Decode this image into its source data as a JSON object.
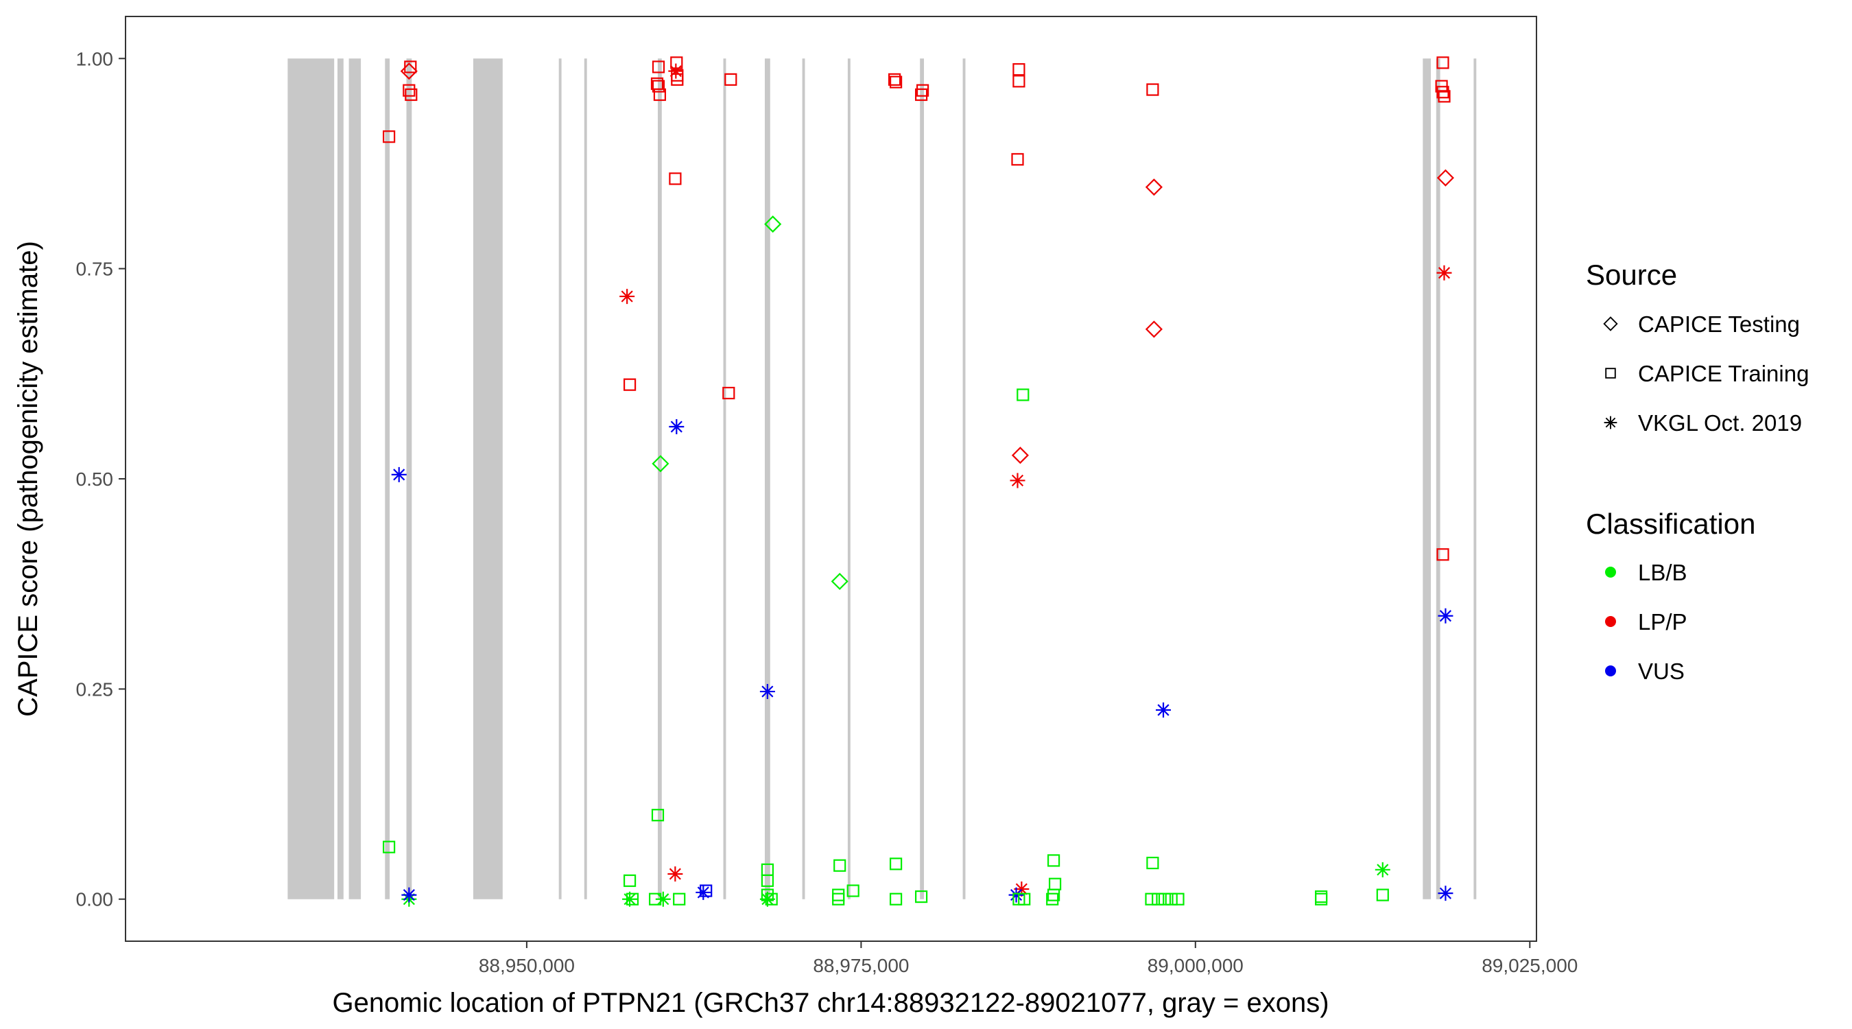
{
  "chart_data": {
    "type": "scatter",
    "title": "",
    "xlabel": "Genomic location of PTPN21 (GRCh37 chr14:88932122-89021077, gray = exons)",
    "ylabel": "CAPICE score (pathogenicity estimate)",
    "xlim": [
      88920000,
      89025500
    ],
    "ylim": [
      -0.05,
      1.05
    ],
    "x_ticks": [
      88950000,
      88975000,
      89000000,
      89025000
    ],
    "x_tick_labels": [
      "88,950,000",
      "88,975,000",
      "89,000,000",
      "89,025,000"
    ],
    "y_ticks": [
      0,
      0.25,
      0.5,
      0.75,
      1.0
    ],
    "y_tick_labels": [
      "0.00",
      "0.25",
      "0.50",
      "0.75",
      "1.00"
    ],
    "grid": false,
    "legend_position": "right",
    "exon_color": "#c8c8c8",
    "exons": [
      [
        88932122,
        88935600
      ],
      [
        88935850,
        88936300
      ],
      [
        88936700,
        88937600
      ],
      [
        88939400,
        88939750
      ],
      [
        88941000,
        88941400
      ],
      [
        88946000,
        88948200
      ],
      [
        88952400,
        88952600
      ],
      [
        88954300,
        88954500
      ],
      [
        88959800,
        88960100
      ],
      [
        88964700,
        88964900
      ],
      [
        88967800,
        88968200
      ],
      [
        88970600,
        88970800
      ],
      [
        88974000,
        88974200
      ],
      [
        88979400,
        88979700
      ],
      [
        88982600,
        88982800
      ],
      [
        89017000,
        89017600
      ],
      [
        89018000,
        89018300
      ],
      [
        89020800,
        89021000
      ]
    ],
    "legend_source_title": "Source",
    "legend_class_title": "Classification",
    "sources": [
      {
        "key": "testing",
        "label": "CAPICE Testing",
        "shape": "diamond"
      },
      {
        "key": "training",
        "label": "CAPICE Training",
        "shape": "square"
      },
      {
        "key": "vkgl",
        "label": "VKGL Oct. 2019",
        "shape": "asterisk"
      }
    ],
    "classes": [
      {
        "key": "LB",
        "label": "LB/B",
        "color": "#00ee00"
      },
      {
        "key": "LP",
        "label": "LP/P",
        "color": "#ee0000"
      },
      {
        "key": "VUS",
        "label": "VUS",
        "color": "#0000ee"
      }
    ],
    "points": [
      {
        "x": 88941200,
        "y": 0.985,
        "source": "testing",
        "class": "LP"
      },
      {
        "x": 88941300,
        "y": 0.99,
        "source": "training",
        "class": "LP"
      },
      {
        "x": 88941200,
        "y": 0.962,
        "source": "training",
        "class": "LP"
      },
      {
        "x": 88941350,
        "y": 0.957,
        "source": "training",
        "class": "LP"
      },
      {
        "x": 88939700,
        "y": 0.907,
        "source": "training",
        "class": "LP"
      },
      {
        "x": 88940450,
        "y": 0.505,
        "source": "vkgl",
        "class": "VUS"
      },
      {
        "x": 88939700,
        "y": 0.062,
        "source": "training",
        "class": "LB"
      },
      {
        "x": 88941200,
        "y": 0.0,
        "source": "vkgl",
        "class": "LB"
      },
      {
        "x": 88941200,
        "y": 0.005,
        "source": "vkgl",
        "class": "VUS"
      },
      {
        "x": 88959850,
        "y": 0.99,
        "source": "training",
        "class": "LP"
      },
      {
        "x": 88959750,
        "y": 0.97,
        "source": "training",
        "class": "LP"
      },
      {
        "x": 88959850,
        "y": 0.967,
        "source": "training",
        "class": "LP"
      },
      {
        "x": 88959950,
        "y": 0.957,
        "source": "training",
        "class": "LP"
      },
      {
        "x": 88961200,
        "y": 0.995,
        "source": "training",
        "class": "LP"
      },
      {
        "x": 88961150,
        "y": 0.985,
        "source": "vkgl",
        "class": "LP"
      },
      {
        "x": 88961250,
        "y": 0.98,
        "source": "training",
        "class": "LP"
      },
      {
        "x": 88961250,
        "y": 0.975,
        "source": "training",
        "class": "LP"
      },
      {
        "x": 88961100,
        "y": 0.857,
        "source": "training",
        "class": "LP"
      },
      {
        "x": 88965250,
        "y": 0.975,
        "source": "training",
        "class": "LP"
      },
      {
        "x": 88957500,
        "y": 0.717,
        "source": "vkgl",
        "class": "LP"
      },
      {
        "x": 88957700,
        "y": 0.612,
        "source": "training",
        "class": "LP"
      },
      {
        "x": 88965100,
        "y": 0.602,
        "source": "training",
        "class": "LP"
      },
      {
        "x": 88961200,
        "y": 0.562,
        "source": "vkgl",
        "class": "VUS"
      },
      {
        "x": 88960000,
        "y": 0.518,
        "source": "testing",
        "class": "LB"
      },
      {
        "x": 88959800,
        "y": 0.1,
        "source": "training",
        "class": "LB"
      },
      {
        "x": 88961100,
        "y": 0.03,
        "source": "vkgl",
        "class": "LP"
      },
      {
        "x": 88957700,
        "y": 0.022,
        "source": "training",
        "class": "LB"
      },
      {
        "x": 88957700,
        "y": 0.0,
        "source": "vkgl",
        "class": "LB"
      },
      {
        "x": 88957900,
        "y": 0.0,
        "source": "training",
        "class": "LB"
      },
      {
        "x": 88959600,
        "y": 0.0,
        "source": "training",
        "class": "LB"
      },
      {
        "x": 88960200,
        "y": 0.0,
        "source": "vkgl",
        "class": "LB"
      },
      {
        "x": 88961400,
        "y": 0.0,
        "source": "training",
        "class": "LB"
      },
      {
        "x": 88963200,
        "y": 0.008,
        "source": "vkgl",
        "class": "VUS"
      },
      {
        "x": 88963400,
        "y": 0.01,
        "source": "training",
        "class": "VUS"
      },
      {
        "x": 88968400,
        "y": 0.803,
        "source": "testing",
        "class": "LB"
      },
      {
        "x": 88968000,
        "y": 0.247,
        "source": "vkgl",
        "class": "VUS"
      },
      {
        "x": 88968000,
        "y": 0.035,
        "source": "training",
        "class": "LB"
      },
      {
        "x": 88968000,
        "y": 0.022,
        "source": "training",
        "class": "LB"
      },
      {
        "x": 88968000,
        "y": 0.005,
        "source": "training",
        "class": "LB"
      },
      {
        "x": 88968000,
        "y": 0.0,
        "source": "vkgl",
        "class": "LB"
      },
      {
        "x": 88968300,
        "y": 0.0,
        "source": "training",
        "class": "LB"
      },
      {
        "x": 88973400,
        "y": 0.378,
        "source": "testing",
        "class": "LB"
      },
      {
        "x": 88973400,
        "y": 0.04,
        "source": "training",
        "class": "LB"
      },
      {
        "x": 88973300,
        "y": 0.005,
        "source": "training",
        "class": "LB"
      },
      {
        "x": 88973300,
        "y": 0.0,
        "source": "training",
        "class": "LB"
      },
      {
        "x": 88974400,
        "y": 0.01,
        "source": "training",
        "class": "LB"
      },
      {
        "x": 88977500,
        "y": 0.975,
        "source": "training",
        "class": "LP"
      },
      {
        "x": 88977600,
        "y": 0.972,
        "source": "training",
        "class": "LP"
      },
      {
        "x": 88979600,
        "y": 0.962,
        "source": "training",
        "class": "LP"
      },
      {
        "x": 88979500,
        "y": 0.957,
        "source": "training",
        "class": "LP"
      },
      {
        "x": 88977600,
        "y": 0.042,
        "source": "training",
        "class": "LB"
      },
      {
        "x": 88977600,
        "y": 0.0,
        "source": "training",
        "class": "LB"
      },
      {
        "x": 88979500,
        "y": 0.003,
        "source": "training",
        "class": "LB"
      },
      {
        "x": 88986800,
        "y": 0.987,
        "source": "training",
        "class": "LP"
      },
      {
        "x": 88986800,
        "y": 0.973,
        "source": "training",
        "class": "LP"
      },
      {
        "x": 88986700,
        "y": 0.88,
        "source": "training",
        "class": "LP"
      },
      {
        "x": 88986900,
        "y": 0.528,
        "source": "testing",
        "class": "LP"
      },
      {
        "x": 88986700,
        "y": 0.498,
        "source": "vkgl",
        "class": "LP"
      },
      {
        "x": 88987100,
        "y": 0.6,
        "source": "training",
        "class": "LB"
      },
      {
        "x": 88987000,
        "y": 0.012,
        "source": "vkgl",
        "class": "LP"
      },
      {
        "x": 88986600,
        "y": 0.005,
        "source": "vkgl",
        "class": "VUS"
      },
      {
        "x": 88986800,
        "y": 0.0,
        "source": "training",
        "class": "LB"
      },
      {
        "x": 88987200,
        "y": 0.0,
        "source": "training",
        "class": "LB"
      },
      {
        "x": 88989400,
        "y": 0.046,
        "source": "training",
        "class": "LB"
      },
      {
        "x": 88989500,
        "y": 0.018,
        "source": "training",
        "class": "LB"
      },
      {
        "x": 88989400,
        "y": 0.005,
        "source": "training",
        "class": "LB"
      },
      {
        "x": 88989300,
        "y": 0.0,
        "source": "training",
        "class": "LB"
      },
      {
        "x": 88996800,
        "y": 0.963,
        "source": "training",
        "class": "LP"
      },
      {
        "x": 88996900,
        "y": 0.847,
        "source": "testing",
        "class": "LP"
      },
      {
        "x": 88996900,
        "y": 0.678,
        "source": "testing",
        "class": "LP"
      },
      {
        "x": 88997600,
        "y": 0.225,
        "source": "vkgl",
        "class": "VUS"
      },
      {
        "x": 88996800,
        "y": 0.043,
        "source": "training",
        "class": "LB"
      },
      {
        "x": 88996700,
        "y": 0.0,
        "source": "training",
        "class": "LB"
      },
      {
        "x": 88997200,
        "y": 0.0,
        "source": "training",
        "class": "LB"
      },
      {
        "x": 88997700,
        "y": 0.0,
        "source": "training",
        "class": "LB"
      },
      {
        "x": 88998200,
        "y": 0.0,
        "source": "training",
        "class": "LB"
      },
      {
        "x": 88998700,
        "y": 0.0,
        "source": "training",
        "class": "LB"
      },
      {
        "x": 89009400,
        "y": 0.003,
        "source": "training",
        "class": "LB"
      },
      {
        "x": 89009400,
        "y": 0.0,
        "source": "training",
        "class": "LB"
      },
      {
        "x": 89014000,
        "y": 0.035,
        "source": "vkgl",
        "class": "LB"
      },
      {
        "x": 89014000,
        "y": 0.005,
        "source": "training",
        "class": "LB"
      },
      {
        "x": 89018500,
        "y": 0.995,
        "source": "training",
        "class": "LP"
      },
      {
        "x": 89018400,
        "y": 0.967,
        "source": "training",
        "class": "LP"
      },
      {
        "x": 89018500,
        "y": 0.96,
        "source": "training",
        "class": "LP"
      },
      {
        "x": 89018600,
        "y": 0.955,
        "source": "training",
        "class": "LP"
      },
      {
        "x": 89018700,
        "y": 0.858,
        "source": "testing",
        "class": "LP"
      },
      {
        "x": 89018600,
        "y": 0.745,
        "source": "vkgl",
        "class": "LP"
      },
      {
        "x": 89018500,
        "y": 0.41,
        "source": "training",
        "class": "LP"
      },
      {
        "x": 89018700,
        "y": 0.337,
        "source": "vkgl",
        "class": "VUS"
      },
      {
        "x": 89018700,
        "y": 0.007,
        "source": "vkgl",
        "class": "VUS"
      }
    ]
  }
}
